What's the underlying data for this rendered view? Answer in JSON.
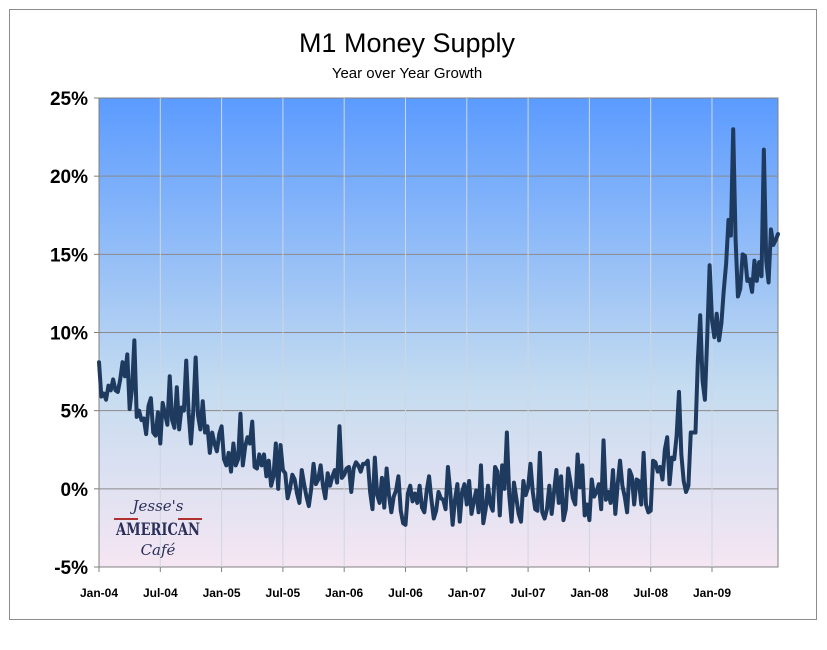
{
  "chart_data": {
    "type": "line",
    "title": "M1 Money Supply",
    "subtitle": "Year over Year Growth",
    "xlabel": "",
    "ylabel": "",
    "ylim": [
      -5,
      25
    ],
    "y_ticks": [
      "25%",
      "20%",
      "15%",
      "10%",
      "5%",
      "0%",
      "-5%"
    ],
    "x_ticks": [
      "Jan-04",
      "Jul-04",
      "Jan-05",
      "Jul-05",
      "Jan-06",
      "Jul-06",
      "Jan-07",
      "Jul-07",
      "Jan-08",
      "Jul-08",
      "Jan-09"
    ],
    "grid": true,
    "line_color": "#1f3a5f",
    "background_gradient": [
      "#5b9bff",
      "#c5dcf0",
      "#f5e6f2"
    ],
    "series": [
      {
        "values": [
          8.1,
          5.9,
          6.1,
          5.7,
          6.6,
          6.3,
          7.0,
          6.3,
          6.2,
          7.0,
          8.1,
          7.2,
          8.6,
          5.1,
          6.4,
          9.5,
          4.6,
          5.0,
          4.4,
          4.5,
          3.5,
          5.3,
          5.8,
          3.6,
          3.4,
          4.9,
          2.9,
          5.5,
          4.8,
          4.1,
          7.2,
          4.4,
          3.9,
          6.5,
          3.8,
          5.2,
          5.0,
          8.2,
          4.9,
          2.9,
          5.0,
          8.4,
          4.7,
          3.8,
          5.6,
          3.6,
          4.0,
          2.3,
          3.6,
          2.9,
          2.4,
          3.5,
          4.0,
          1.9,
          1.5,
          2.3,
          1.1,
          2.9,
          1.5,
          1.9,
          4.8,
          1.5,
          2.7,
          3.3,
          2.9,
          4.3,
          1.4,
          1.3,
          2.2,
          1.5,
          2.2,
          0.8,
          1.8,
          0.2,
          0.8,
          2.9,
          0.0,
          2.8,
          1.2,
          1.0,
          -0.6,
          0.0,
          0.9,
          0.6,
          -0.3,
          -0.9,
          1.2,
          0.3,
          -0.5,
          -1.1,
          0.0,
          1.6,
          0.3,
          0.6,
          1.5,
          0.2,
          -0.6,
          1.0,
          0.2,
          0.8,
          1.2,
          0.4,
          4.0,
          0.7,
          0.9,
          1.3,
          1.4,
          -0.2,
          1.3,
          1.7,
          1.5,
          1.1,
          1.6,
          1.6,
          1.8,
          -0.2,
          -1.3,
          2.0,
          -0.4,
          -0.9,
          0.7,
          -1.2,
          1.3,
          -0.4,
          -1.5,
          -0.5,
          -0.1,
          0.8,
          -1.4,
          -2.2,
          -2.3,
          -0.3,
          0.2,
          -0.8,
          -0.3,
          -0.9,
          0.2,
          -1.2,
          -1.5,
          -0.1,
          0.8,
          -0.7,
          -1.9,
          -1.4,
          -0.2,
          -0.6,
          -0.7,
          -1.3,
          1.4,
          -0.2,
          -2.3,
          -0.7,
          0.3,
          -2.1,
          -0.2,
          0.3,
          -1.0,
          0.5,
          -1.6,
          -0.8,
          -0.1,
          -1.5,
          1.5,
          -2.2,
          -1.3,
          0.2,
          -1.0,
          -1.4,
          1.4,
          1.1,
          -1.7,
          1.5,
          0.0,
          3.6,
          -0.4,
          -2.1,
          0.4,
          -0.6,
          -1.6,
          -2.1,
          0.5,
          -0.4,
          0.1,
          1.6,
          -0.2,
          -1.3,
          -1.4,
          2.3,
          -1.5,
          -1.9,
          -1.3,
          0.2,
          -1.6,
          -0.2,
          1.2,
          -0.9,
          0.8,
          -2.0,
          -1.3,
          1.3,
          0.4,
          -0.6,
          -1.0,
          2.2,
          0.1,
          1.5,
          -1.7,
          -1.0,
          -2.0,
          0.6,
          -0.5,
          -0.2,
          0.3,
          -1.3,
          3.1,
          -0.7,
          -0.2,
          -0.9,
          1.2,
          -1.6,
          0.3,
          1.8,
          0.2,
          -0.5,
          -1.5,
          1.2,
          0.8,
          -1.0,
          0.6,
          0.5,
          -1.0,
          2.3,
          -1.0,
          -1.5,
          -1.4,
          1.8,
          1.7,
          1.1,
          1.4,
          0.6,
          2.5,
          3.3,
          0.3,
          2.0,
          1.9,
          3.4,
          6.2,
          2.2,
          0.5,
          -0.2,
          0.2,
          3.6,
          3.6,
          3.6,
          8.2,
          11.1,
          6.9,
          5.7,
          9.8,
          14.3,
          10.8,
          9.7,
          11.2,
          9.5,
          10.6,
          12.7,
          14.4,
          17.2,
          16.2,
          23.0,
          16.0,
          12.3,
          12.8,
          15.0,
          14.9,
          13.3,
          13.4,
          12.6,
          14.6,
          13.3,
          14.5,
          13.6,
          21.7,
          14.6,
          13.2,
          16.6,
          15.6,
          15.9,
          16.3
        ]
      }
    ]
  },
  "watermark": {
    "line1": "Jesse's",
    "line2": "AMERICAN",
    "line3": "Café"
  }
}
